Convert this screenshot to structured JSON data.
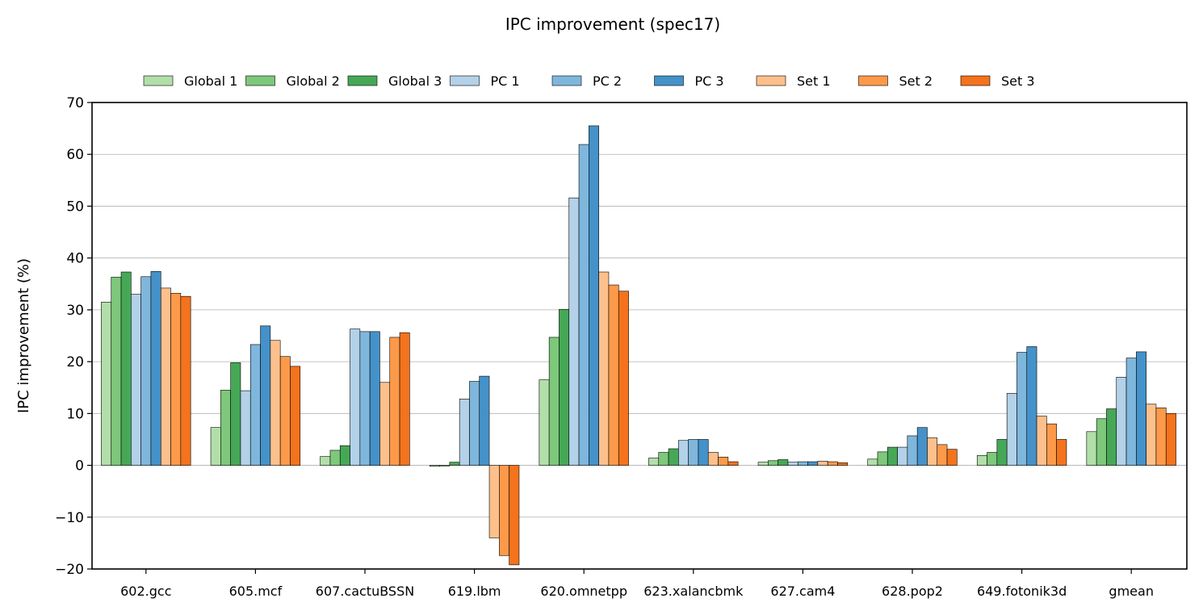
{
  "chart_data": {
    "type": "bar",
    "title": "IPC improvement (spec17)",
    "xlabel": "",
    "ylabel": "IPC improvement (%)",
    "ylim": [
      -20,
      70
    ],
    "yticks": [
      -20,
      -10,
      0,
      10,
      20,
      30,
      40,
      50,
      60,
      70
    ],
    "ytick_labels": [
      "−20",
      "−10",
      "0",
      "10",
      "20",
      "30",
      "40",
      "50",
      "60",
      "70"
    ],
    "grid": "horizontal",
    "legend_position": "top",
    "categories": [
      "602.gcc",
      "605.mcf",
      "607.cactuBSSN",
      "619.lbm",
      "620.omnetpp",
      "623.xalancbmk",
      "627.cam4",
      "628.pop2",
      "649.fotonik3d",
      "gmean"
    ],
    "series": [
      {
        "name": "Global 1",
        "color": "#b2dfa9",
        "values": [
          31.5,
          7.3,
          1.7,
          -0.2,
          16.5,
          1.4,
          0.6,
          1.2,
          1.9,
          6.5
        ]
      },
      {
        "name": "Global 2",
        "color": "#7dc87b",
        "values": [
          36.3,
          14.5,
          2.9,
          0.0,
          24.7,
          2.5,
          0.9,
          2.6,
          2.5,
          9.0
        ]
      },
      {
        "name": "Global 3",
        "color": "#46a857",
        "values": [
          37.3,
          19.8,
          3.8,
          0.6,
          30.1,
          3.2,
          1.1,
          3.5,
          5.0,
          10.9
        ]
      },
      {
        "name": "PC 1",
        "color": "#b3d1e8",
        "values": [
          33.0,
          14.4,
          26.3,
          12.8,
          51.6,
          4.8,
          0.6,
          3.5,
          13.9,
          17.0
        ]
      },
      {
        "name": "PC 2",
        "color": "#7fb6dc",
        "values": [
          36.4,
          23.3,
          25.8,
          16.2,
          61.9,
          5.0,
          0.7,
          5.7,
          21.8,
          20.7
        ]
      },
      {
        "name": "PC 3",
        "color": "#4492c9",
        "values": [
          37.4,
          26.9,
          25.8,
          17.2,
          65.5,
          5.0,
          0.7,
          7.3,
          22.9,
          21.9
        ]
      },
      {
        "name": "Set 1",
        "color": "#fdc08c",
        "values": [
          34.2,
          24.1,
          16.0,
          -14.0,
          37.3,
          2.5,
          0.8,
          5.3,
          9.5,
          11.8
        ]
      },
      {
        "name": "Set 2",
        "color": "#fd9a4a",
        "values": [
          33.2,
          21.0,
          24.7,
          -17.4,
          34.8,
          1.6,
          0.7,
          4.0,
          8.0,
          11.1
        ]
      },
      {
        "name": "Set 3",
        "color": "#f4731c",
        "values": [
          32.6,
          19.1,
          25.6,
          -19.2,
          33.6,
          0.7,
          0.5,
          3.1,
          5.0,
          10.0
        ]
      }
    ]
  }
}
